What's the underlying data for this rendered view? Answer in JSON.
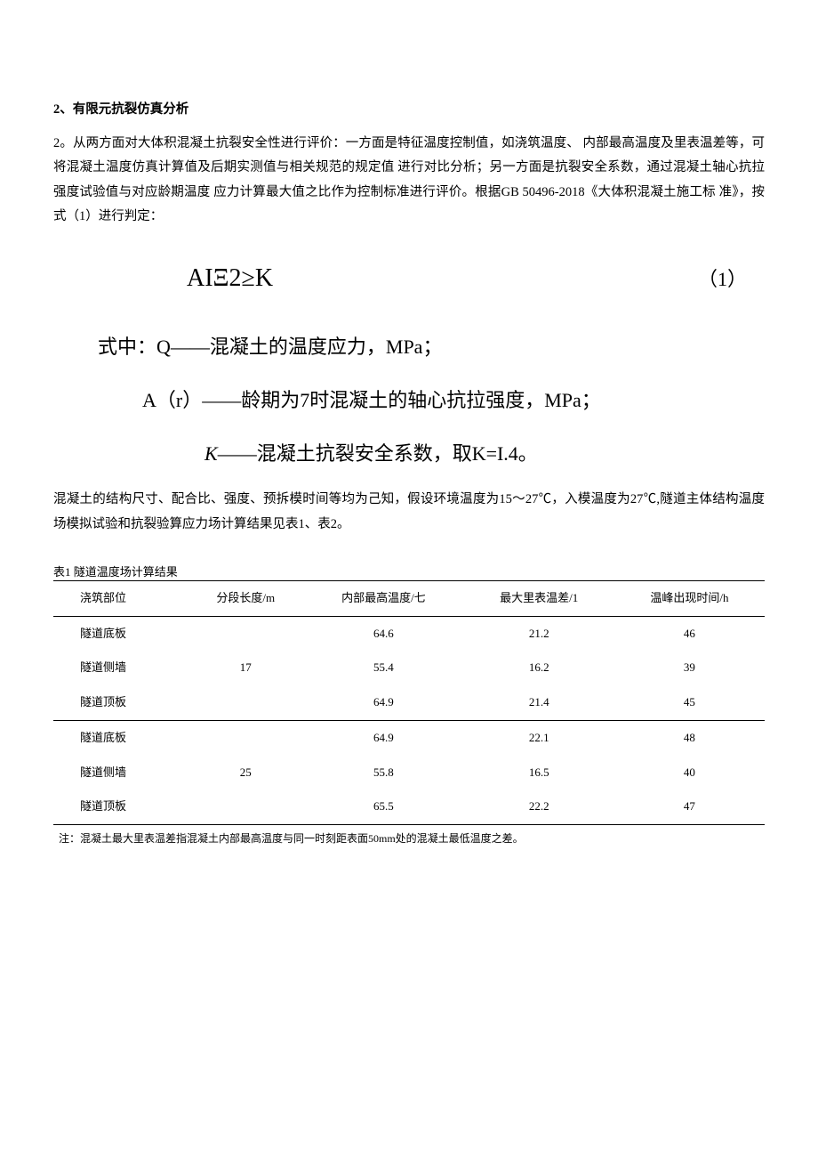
{
  "heading": "2、有限元抗裂仿真分析",
  "para1": "2。从两方面对大体积混凝土抗裂安全性进行评价：一方面是特征温度控制值，如浇筑温度、 内部最高温度及里表温差等，可将混凝土温度仿真计算值及后期实测值与相关规范的规定值 进行对比分析；另一方面是抗裂安全系数，通过混凝土轴心抗拉强度试验值与对应龄期温度 应力计算最大值之比作为控制标准进行评价。根据GB 50496-2018《大体积混凝土施工标 准》，按式（1）进行判定：",
  "formula": "AIΞ2≥K",
  "formula_id": "（1）",
  "def1_pre": "式中：Q——混凝土的温度应力，MPa；",
  "def2_pre": "A（r）——龄期为7时混凝土的轴心抗拉强度，MPa；",
  "def3_k": "K",
  "def3_rest": "——混凝土抗裂安全系数，取K=I.4。",
  "para2": "混凝土的结构尺寸、配合比、强度、预拆模时间等均为己知，假设环境温度为15～27℃，入模温度为27℃,隧道主体结构温度场模拟试验和抗裂验算应力场计算结果见表1、表2。",
  "table1": {
    "caption": "表1 隧道温度场计算结果",
    "columns": [
      "浇筑部位",
      "分段长度/m",
      "内部最高温度/七",
      "最大里表温差/1",
      "温峰出现时间/h"
    ],
    "rows": [
      [
        "隧道底板",
        "",
        "64.6",
        "21.2",
        "46"
      ],
      [
        "隧道侧墙",
        "17",
        "55.4",
        "16.2",
        "39"
      ],
      [
        "隧道顶板",
        "",
        "64.9",
        "21.4",
        "45"
      ],
      [
        "隧道底板",
        "",
        "64.9",
        "22.1",
        "48"
      ],
      [
        "隧道侧墙",
        "25",
        "55.8",
        "16.5",
        "40"
      ],
      [
        "隧道顶板",
        "",
        "65.5",
        "22.2",
        "47"
      ]
    ],
    "group_break_after_row_index": 2,
    "note": "注：混凝土最大里表温差指混凝土内部最高温度与同一时刻距表面50mm处的混凝土最低温度之差。"
  },
  "colors": {
    "text": "#000000",
    "bg": "#ffffff",
    "rule": "#000000"
  },
  "fonts": {
    "body_pt": 14.5,
    "heading_weight": "bold",
    "formula_pt": 28,
    "def_pt": 22,
    "table_pt": 13,
    "note_pt": 12
  }
}
